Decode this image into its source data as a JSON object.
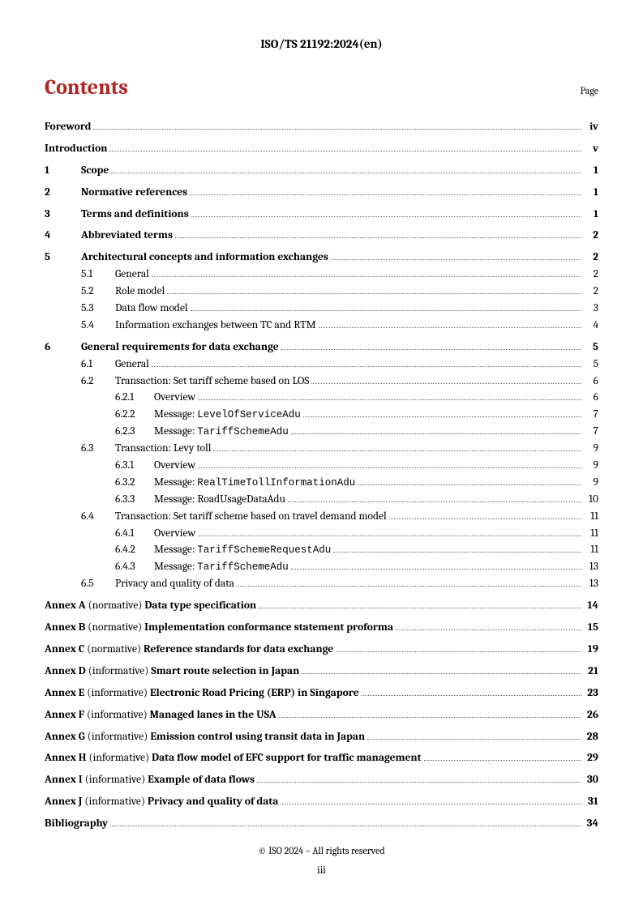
{
  "document_id": "ISO/TS 21192:2024(en)",
  "heading": "Contents",
  "page_label": "Page",
  "footer_copyright": "© ISO 2024 – All rights reserved",
  "footer_page": "iii",
  "colors": {
    "heading": "#b22222",
    "text": "#000000",
    "leader": "#666666",
    "background": "#ffffff"
  },
  "toc": [
    {
      "level": 0,
      "num": "",
      "title": "Foreword",
      "page": "iv",
      "bold": true,
      "spaceBefore": false
    },
    {
      "level": 0,
      "num": "",
      "title": "Introduction",
      "page": "v",
      "bold": true,
      "spaceBefore": true
    },
    {
      "level": 0,
      "num": "1",
      "title": "Scope",
      "page": "1",
      "bold": true,
      "spaceBefore": true
    },
    {
      "level": 0,
      "num": "2",
      "title": "Normative references",
      "page": "1",
      "bold": true,
      "spaceBefore": true
    },
    {
      "level": 0,
      "num": "3",
      "title": "Terms and definitions",
      "page": "1",
      "bold": true,
      "spaceBefore": true
    },
    {
      "level": 0,
      "num": "4",
      "title": "Abbreviated terms",
      "page": "2",
      "bold": true,
      "spaceBefore": true
    },
    {
      "level": 0,
      "num": "5",
      "title": "Architectural concepts and information exchanges",
      "page": "2",
      "bold": true,
      "spaceBefore": true
    },
    {
      "level": 1,
      "num": "5.1",
      "title": "General",
      "page": "2",
      "bold": false
    },
    {
      "level": 1,
      "num": "5.2",
      "title": "Role model",
      "page": "2",
      "bold": false
    },
    {
      "level": 1,
      "num": "5.3",
      "title": "Data flow model",
      "page": "3",
      "bold": false
    },
    {
      "level": 1,
      "num": "5.4",
      "title": "Information exchanges between TC and RTM",
      "page": "4",
      "bold": false
    },
    {
      "level": 0,
      "num": "6",
      "title": "General requirements for data exchange",
      "page": "5",
      "bold": true,
      "spaceBefore": true
    },
    {
      "level": 1,
      "num": "6.1",
      "title": "General",
      "page": "5",
      "bold": false
    },
    {
      "level": 1,
      "num": "6.2",
      "title": "Transaction: Set tariff scheme based on LOS",
      "page": "6",
      "bold": false
    },
    {
      "level": 2,
      "num": "6.2.1",
      "title": "Overview",
      "page": "6",
      "bold": false
    },
    {
      "level": 2,
      "num": "6.2.2",
      "title": "Message: ",
      "mono": "LevelOfServiceAdu",
      "page": "7",
      "bold": false
    },
    {
      "level": 2,
      "num": "6.2.3",
      "title": "Message: ",
      "mono": "TariffSchemeAdu",
      "page": "7",
      "bold": false
    },
    {
      "level": 1,
      "num": "6.3",
      "title": "Transaction: Levy toll",
      "page": "9",
      "bold": false
    },
    {
      "level": 2,
      "num": "6.3.1",
      "title": "Overview",
      "page": "9",
      "bold": false
    },
    {
      "level": 2,
      "num": "6.3.2",
      "title": "Message: ",
      "mono": "RealTimeTollInformationAdu",
      "page": "9",
      "bold": false
    },
    {
      "level": 2,
      "num": "6.3.3",
      "title": "Message: RoadUsageDataAdu",
      "page": "10",
      "bold": false
    },
    {
      "level": 1,
      "num": "6.4",
      "title": "Transaction: Set tariff scheme based on travel demand model",
      "page": "11",
      "bold": false
    },
    {
      "level": 2,
      "num": "6.4.1",
      "title": "Overview",
      "page": "11",
      "bold": false
    },
    {
      "level": 2,
      "num": "6.4.2",
      "title": "Message: ",
      "mono": "TariffSchemeRequestAdu",
      "page": "11",
      "bold": false
    },
    {
      "level": 2,
      "num": "6.4.3",
      "title": "Message: ",
      "mono": "TariffSchemeAdu",
      "page": "13",
      "bold": false
    },
    {
      "level": 1,
      "num": "6.5",
      "title": "Privacy and quality of data",
      "page": "13",
      "bold": false
    },
    {
      "level": 0,
      "num": "",
      "prefix": "Annex A",
      "note": " (normative) ",
      "title": "Data type specification",
      "page": "14",
      "bold": true,
      "spaceBefore": true,
      "isAnnex": true
    },
    {
      "level": 0,
      "num": "",
      "prefix": "Annex B",
      "note": " (normative) ",
      "title": "Implementation conformance statement proforma",
      "page": "15",
      "bold": true,
      "spaceBefore": true,
      "isAnnex": true
    },
    {
      "level": 0,
      "num": "",
      "prefix": "Annex C",
      "note": " (normative) ",
      "title": "Reference standards for data exchange",
      "page": "19",
      "bold": true,
      "spaceBefore": true,
      "isAnnex": true
    },
    {
      "level": 0,
      "num": "",
      "prefix": "Annex D",
      "note": " (informative) ",
      "title": "Smart route selection in Japan",
      "page": "21",
      "bold": true,
      "spaceBefore": true,
      "isAnnex": true
    },
    {
      "level": 0,
      "num": "",
      "prefix": "Annex E",
      "note": " (informative) ",
      "title": "Electronic Road Pricing (ERP) in Singapore",
      "page": "23",
      "bold": true,
      "spaceBefore": true,
      "isAnnex": true
    },
    {
      "level": 0,
      "num": "",
      "prefix": "Annex F",
      "note": " (informative) ",
      "title": "Managed lanes in the USA",
      "page": "26",
      "bold": true,
      "spaceBefore": true,
      "isAnnex": true
    },
    {
      "level": 0,
      "num": "",
      "prefix": "Annex G",
      "note": " (informative) ",
      "title": "Emission control using transit data in Japan",
      "page": "28",
      "bold": true,
      "spaceBefore": true,
      "isAnnex": true
    },
    {
      "level": 0,
      "num": "",
      "prefix": "Annex H",
      "note": " (informative) ",
      "title": "Data flow model of EFC support for traffic management",
      "page": "29",
      "bold": true,
      "spaceBefore": true,
      "isAnnex": true
    },
    {
      "level": 0,
      "num": "",
      "prefix": "Annex I",
      "note": " (informative) ",
      "title": "Example of data flows",
      "page": "30",
      "bold": true,
      "spaceBefore": true,
      "isAnnex": true
    },
    {
      "level": 0,
      "num": "",
      "prefix": "Annex J",
      "note": " (informative) ",
      "title": "Privacy and quality of data",
      "page": "31",
      "bold": true,
      "spaceBefore": true,
      "isAnnex": true
    },
    {
      "level": 0,
      "num": "",
      "title": "Bibliography",
      "page": "34",
      "bold": true,
      "spaceBefore": true
    }
  ]
}
